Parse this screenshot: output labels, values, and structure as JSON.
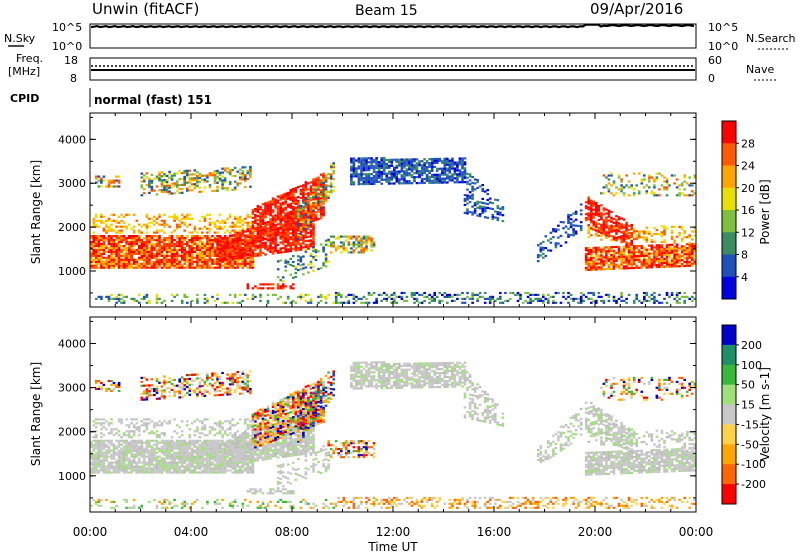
{
  "header": {
    "station": "Unwin (fitACF)",
    "beam": "Beam 15",
    "date": "09/Apr/2016"
  },
  "nsky_panel": {
    "left_label": "N.Sky",
    "right_label": "N.Search",
    "left_ticks": [
      "10^5",
      "10^0"
    ],
    "right_ticks": [
      "10^5",
      "10^0"
    ]
  },
  "freq_panel": {
    "left_label_1": "Freq.",
    "left_label_2": "[MHz]",
    "right_label": "Nave",
    "left_ticks": [
      "18",
      "8"
    ],
    "right_ticks": [
      "60",
      "0"
    ]
  },
  "cpid_panel": {
    "label": "CPID",
    "value": "normal (fast) 151"
  },
  "chart_data": [
    {
      "type": "heatmap",
      "title": "",
      "xlabel": "Time UT",
      "ylabel": "Slant Range [km]",
      "x_ticks": [
        "00:00",
        "04:00",
        "08:00",
        "12:00",
        "16:00",
        "20:00",
        "00:00"
      ],
      "xlim": [
        0,
        24
      ],
      "ylim": [
        180,
        4600
      ],
      "y_ticks": [
        "1000",
        "2000",
        "3000",
        "4000"
      ],
      "colorbar": {
        "label": "Power [dB]",
        "ticks": [
          "28",
          "24",
          "20",
          "16",
          "12",
          "8",
          "4"
        ],
        "range": [
          0,
          30
        ],
        "colors": [
          "#0000e0",
          "#1f4fb8",
          "#3a8d60",
          "#7fbf3f",
          "#e8e000",
          "#ffa500",
          "#ff5a00",
          "#ff0000"
        ]
      }
    },
    {
      "type": "heatmap",
      "title": "",
      "xlabel": "Time UT",
      "ylabel": "Slant Range [km]",
      "x_ticks": [
        "00:00",
        "04:00",
        "08:00",
        "12:00",
        "16:00",
        "20:00",
        "00:00"
      ],
      "xlim": [
        0,
        24
      ],
      "ylim": [
        180,
        4600
      ],
      "y_ticks": [
        "1000",
        "2000",
        "3000",
        "4000"
      ],
      "colorbar": {
        "label": "Velocity [m s-1]",
        "ticks": [
          "200",
          "100",
          "50",
          "15",
          "-15",
          "-50",
          "-100",
          "-200"
        ],
        "range": [
          -250,
          250
        ],
        "colors": [
          "#ff0000",
          "#ff6600",
          "#ffa500",
          "#ffd24a",
          "#c8c8c8",
          "#9fe07a",
          "#3ab83a",
          "#1f8f6a",
          "#0000cc"
        ]
      }
    }
  ]
}
